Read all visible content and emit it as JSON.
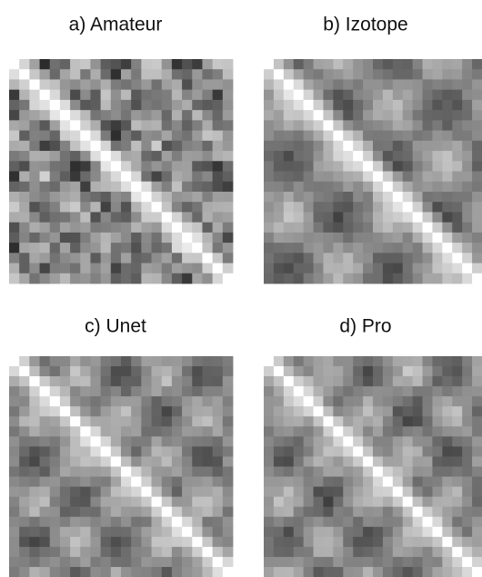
{
  "panels": [
    {
      "title": "a) Amateur"
    },
    {
      "title": "b) Izotope"
    },
    {
      "title": "c) Unet"
    },
    {
      "title": "d) Pro"
    }
  ]
}
